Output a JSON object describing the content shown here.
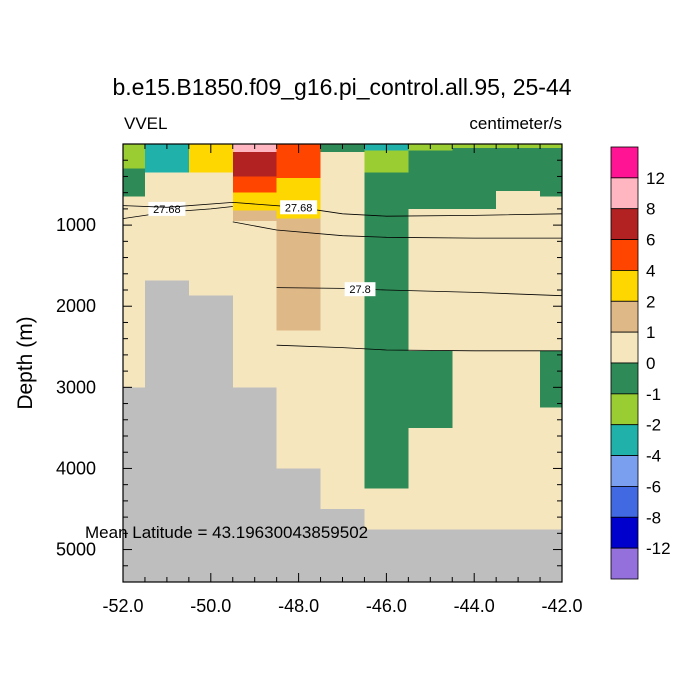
{
  "chart_data": {
    "type": "heatmap",
    "title": "b.e15.B1850.f09_g16.pi_control.all.95, 25-44",
    "left_label": "VVEL",
    "right_label": "centimeter/s",
    "ylabel": "Depth (m)",
    "xlabel": "",
    "xlim": [
      -52,
      -42
    ],
    "ylim": [
      5400,
      0
    ],
    "xticks": [
      -52,
      -50,
      -48,
      -46,
      -44,
      -42
    ],
    "xtick_labels": [
      "-52.0",
      "-50.0",
      "-48.0",
      "-46.0",
      "-44.0",
      "-42.0"
    ],
    "yticks": [
      1000,
      2000,
      3000,
      4000,
      5000
    ],
    "ytick_labels": [
      "1000",
      "2000",
      "3000",
      "4000",
      "5000"
    ],
    "annotation": "Mean Latitude = 43.19630043859502",
    "missing_color": "#bebebe",
    "levels": [
      {
        "label": "12",
        "color": "#ff1493"
      },
      {
        "label": "8",
        "color": "#ffb6c1"
      },
      {
        "label": "6",
        "color": "#b22222"
      },
      {
        "label": "4",
        "color": "#ff4500"
      },
      {
        "label": "2",
        "color": "#ffd700"
      },
      {
        "label": "1",
        "color": "#deb887"
      },
      {
        "label": "0",
        "color": "#f5e6be"
      },
      {
        "label": "-1",
        "color": "#2e8b57"
      },
      {
        "label": "-2",
        "color": "#9acd32"
      },
      {
        "label": "-4",
        "color": "#20b2aa"
      },
      {
        "label": "-6",
        "color": "#7b9fef"
      },
      {
        "label": "-8",
        "color": "#4169e1"
      },
      {
        "label": "-12",
        "color": "#0000cd"
      },
      {
        "label": "",
        "color": "#9370db"
      }
    ],
    "cells": [
      {
        "x0": -52.0,
        "x1": -51.0,
        "d0": 0,
        "d1": 5400,
        "c": "#f5e6be"
      },
      {
        "x0": -52.0,
        "x1": -51.5,
        "d0": 0,
        "d1": 300,
        "c": "#9acd32"
      },
      {
        "x0": -52.0,
        "x1": -51.5,
        "d0": 300,
        "d1": 650,
        "c": "#2e8b57"
      },
      {
        "x0": -51.5,
        "x1": -50.5,
        "d0": 0,
        "d1": 350,
        "c": "#20b2aa"
      },
      {
        "x0": -51.5,
        "x1": -50.5,
        "d0": 350,
        "d1": 5400,
        "c": "#f5e6be"
      },
      {
        "x0": -50.5,
        "x1": -49.5,
        "d0": 0,
        "d1": 350,
        "c": "#ffd700"
      },
      {
        "x0": -50.5,
        "x1": -49.5,
        "d0": 350,
        "d1": 5400,
        "c": "#f5e6be"
      },
      {
        "x0": -49.5,
        "x1": -48.5,
        "d0": 0,
        "d1": 100,
        "c": "#ffb6c1"
      },
      {
        "x0": -49.5,
        "x1": -48.5,
        "d0": 100,
        "d1": 400,
        "c": "#b22222"
      },
      {
        "x0": -49.5,
        "x1": -48.5,
        "d0": 400,
        "d1": 600,
        "c": "#ff4500"
      },
      {
        "x0": -49.5,
        "x1": -48.5,
        "d0": 600,
        "d1": 820,
        "c": "#ffd700"
      },
      {
        "x0": -49.5,
        "x1": -48.5,
        "d0": 820,
        "d1": 950,
        "c": "#deb887"
      },
      {
        "x0": -49.5,
        "x1": -48.5,
        "d0": 950,
        "d1": 5400,
        "c": "#f5e6be"
      },
      {
        "x0": -48.5,
        "x1": -47.5,
        "d0": 0,
        "d1": 420,
        "c": "#ff4500"
      },
      {
        "x0": -48.5,
        "x1": -47.5,
        "d0": 420,
        "d1": 920,
        "c": "#ffd700"
      },
      {
        "x0": -48.5,
        "x1": -47.5,
        "d0": 920,
        "d1": 2300,
        "c": "#deb887"
      },
      {
        "x0": -48.5,
        "x1": -47.5,
        "d0": 2300,
        "d1": 5400,
        "c": "#f5e6be"
      },
      {
        "x0": -47.5,
        "x1": -46.5,
        "d0": 0,
        "d1": 100,
        "c": "#2e8b57"
      },
      {
        "x0": -47.5,
        "x1": -46.5,
        "d0": 100,
        "d1": 5400,
        "c": "#f5e6be"
      },
      {
        "x0": -46.5,
        "x1": -45.5,
        "d0": 0,
        "d1": 80,
        "c": "#20b2aa"
      },
      {
        "x0": -46.5,
        "x1": -45.5,
        "d0": 80,
        "d1": 350,
        "c": "#9acd32"
      },
      {
        "x0": -46.5,
        "x1": -45.5,
        "d0": 350,
        "d1": 4250,
        "c": "#2e8b57"
      },
      {
        "x0": -46.5,
        "x1": -45.5,
        "d0": 4250,
        "d1": 5400,
        "c": "#f5e6be"
      },
      {
        "x0": -45.5,
        "x1": -44.5,
        "d0": 0,
        "d1": 80,
        "c": "#9acd32"
      },
      {
        "x0": -45.5,
        "x1": -44.5,
        "d0": 80,
        "d1": 800,
        "c": "#2e8b57"
      },
      {
        "x0": -45.5,
        "x1": -44.5,
        "d0": 800,
        "d1": 2550,
        "c": "#f5e6be"
      },
      {
        "x0": -45.5,
        "x1": -44.5,
        "d0": 2550,
        "d1": 3500,
        "c": "#2e8b57"
      },
      {
        "x0": -45.5,
        "x1": -44.5,
        "d0": 3500,
        "d1": 5400,
        "c": "#f5e6be"
      },
      {
        "x0": -44.5,
        "x1": -43.5,
        "d0": 0,
        "d1": 50,
        "c": "#9acd32"
      },
      {
        "x0": -44.5,
        "x1": -43.5,
        "d0": 50,
        "d1": 800,
        "c": "#2e8b57"
      },
      {
        "x0": -44.5,
        "x1": -43.5,
        "d0": 800,
        "d1": 5400,
        "c": "#f5e6be"
      },
      {
        "x0": -43.5,
        "x1": -42.5,
        "d0": 0,
        "d1": 50,
        "c": "#9acd32"
      },
      {
        "x0": -43.5,
        "x1": -42.5,
        "d0": 50,
        "d1": 580,
        "c": "#2e8b57"
      },
      {
        "x0": -43.5,
        "x1": -42.5,
        "d0": 580,
        "d1": 5400,
        "c": "#f5e6be"
      },
      {
        "x0": -42.5,
        "x1": -42.0,
        "d0": 0,
        "d1": 50,
        "c": "#9acd32"
      },
      {
        "x0": -42.5,
        "x1": -42.0,
        "d0": 50,
        "d1": 650,
        "c": "#2e8b57"
      },
      {
        "x0": -42.5,
        "x1": -42.0,
        "d0": 650,
        "d1": 2550,
        "c": "#f5e6be"
      },
      {
        "x0": -42.5,
        "x1": -42.0,
        "d0": 2550,
        "d1": 3250,
        "c": "#2e8b57"
      },
      {
        "x0": -42.5,
        "x1": -42.0,
        "d0": 3250,
        "d1": 5400,
        "c": "#f5e6be"
      }
    ],
    "bathymetry": [
      {
        "x0": -52.0,
        "x1": -51.5,
        "depth": 3000
      },
      {
        "x0": -51.5,
        "x1": -50.5,
        "depth": 1680
      },
      {
        "x0": -50.5,
        "x1": -49.5,
        "depth": 1870
      },
      {
        "x0": -49.5,
        "x1": -48.5,
        "depth": 3000
      },
      {
        "x0": -48.5,
        "x1": -47.5,
        "depth": 4000
      },
      {
        "x0": -47.5,
        "x1": -46.5,
        "depth": 4500
      },
      {
        "x0": -46.5,
        "x1": -42.0,
        "depth": 4750
      }
    ],
    "contours": [
      {
        "label": "27.68",
        "label_x": -51.0,
        "label_d": 800,
        "points": [
          [
            -52.0,
            920
          ],
          [
            -51.0,
            840
          ],
          [
            -50.0,
            800
          ],
          [
            -49.5,
            770
          ]
        ]
      },
      {
        "label": "27.68",
        "label_x": -48.0,
        "label_d": 780,
        "points": [
          [
            -52.0,
            760
          ],
          [
            -51.0,
            780
          ],
          [
            -49.5,
            720
          ],
          [
            -48.0,
            780
          ],
          [
            -47.0,
            860
          ],
          [
            -46.0,
            890
          ],
          [
            -44.0,
            880
          ],
          [
            -42.0,
            860
          ]
        ]
      },
      {
        "label": "",
        "label_x": null,
        "label_d": null,
        "points": [
          [
            -49.5,
            960
          ],
          [
            -48.5,
            1060
          ],
          [
            -47.0,
            1130
          ],
          [
            -46.0,
            1150
          ],
          [
            -44.0,
            1160
          ],
          [
            -42.0,
            1160
          ]
        ]
      },
      {
        "label": "27.8",
        "label_x": -46.6,
        "label_d": 1790,
        "points": [
          [
            -48.5,
            1770
          ],
          [
            -47.0,
            1780
          ],
          [
            -46.0,
            1800
          ],
          [
            -44.0,
            1830
          ],
          [
            -42.0,
            1870
          ]
        ]
      },
      {
        "label": "",
        "label_x": null,
        "label_d": null,
        "points": [
          [
            -48.5,
            2480
          ],
          [
            -47.0,
            2510
          ],
          [
            -46.0,
            2540
          ],
          [
            -44.0,
            2550
          ],
          [
            -42.0,
            2550
          ]
        ]
      }
    ]
  }
}
